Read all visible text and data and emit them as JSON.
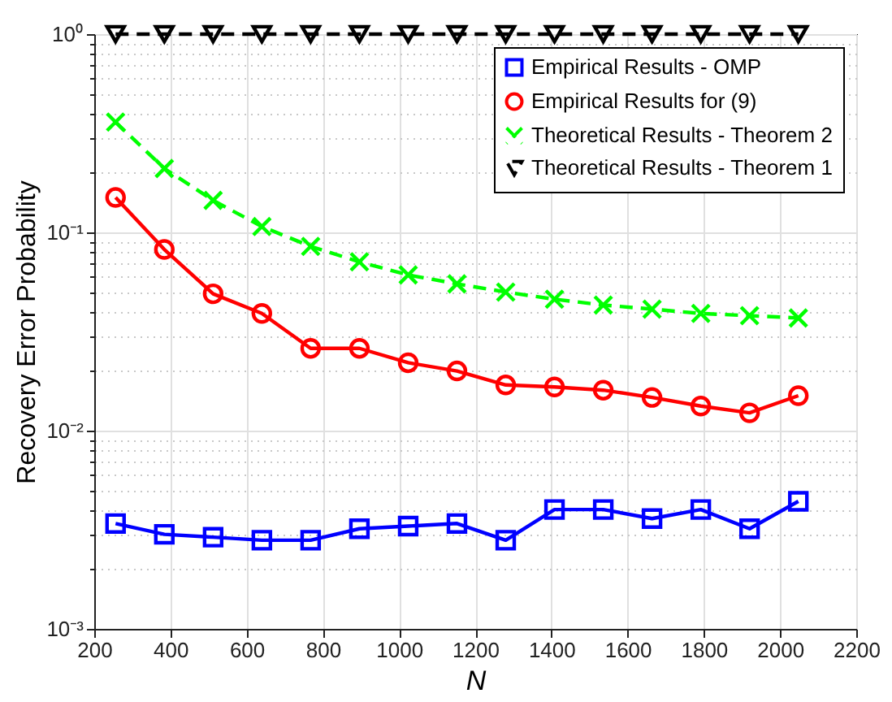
{
  "chart_data": {
    "type": "line",
    "xlabel": "N",
    "ylabel": "Recovery Error Probability",
    "x": [
      256,
      384,
      512,
      640,
      768,
      896,
      1024,
      1152,
      1280,
      1408,
      1536,
      1664,
      1792,
      1920,
      2048
    ],
    "series": [
      {
        "name": "Empirical Results - OMP",
        "color": "#0000ff",
        "marker": "square",
        "line_style": "solid",
        "values": [
          0.0034,
          0.003,
          0.0029,
          0.0028,
          0.0028,
          0.0032,
          0.0033,
          0.0034,
          0.0028,
          0.004,
          0.004,
          0.0036,
          0.004,
          0.0032,
          0.0044
        ]
      },
      {
        "name": "Empirical Results for (9)",
        "color": "#ff0000",
        "marker": "circle",
        "line_style": "solid",
        "values": [
          0.15,
          0.082,
          0.049,
          0.039,
          0.026,
          0.026,
          0.022,
          0.02,
          0.017,
          0.0166,
          0.016,
          0.0147,
          0.0133,
          0.0123,
          0.015
        ]
      },
      {
        "name": "Theoretical Results - Theorem 2",
        "color": "#00ff00",
        "marker": "cross",
        "line_style": "dashed",
        "values": [
          0.36,
          0.21,
          0.145,
          0.107,
          0.085,
          0.071,
          0.061,
          0.055,
          0.05,
          0.046,
          0.043,
          0.041,
          0.039,
          0.038,
          0.037
        ]
      },
      {
        "name": "Theoretical Results - Theorem 1",
        "color": "#000000",
        "marker": "triangle",
        "line_style": "dashed",
        "values": [
          1,
          1,
          1,
          1,
          1,
          1,
          1,
          1,
          1,
          1,
          1,
          1,
          1,
          1,
          1
        ]
      }
    ],
    "log": "y",
    "xlim": [
      200,
      2200
    ],
    "xticks": [
      200,
      400,
      600,
      800,
      1000,
      1200,
      1400,
      1600,
      1800,
      2000,
      2200
    ],
    "ylim": [
      0.001,
      1
    ],
    "yticks": [
      {
        "value": 0.001,
        "label": "10⁻³"
      },
      {
        "value": 0.01,
        "label": "10⁻²"
      },
      {
        "value": 0.1,
        "label": "10⁻¹"
      },
      {
        "value": 1,
        "label": "10⁰"
      }
    ],
    "grid": true,
    "legend": "top right"
  }
}
